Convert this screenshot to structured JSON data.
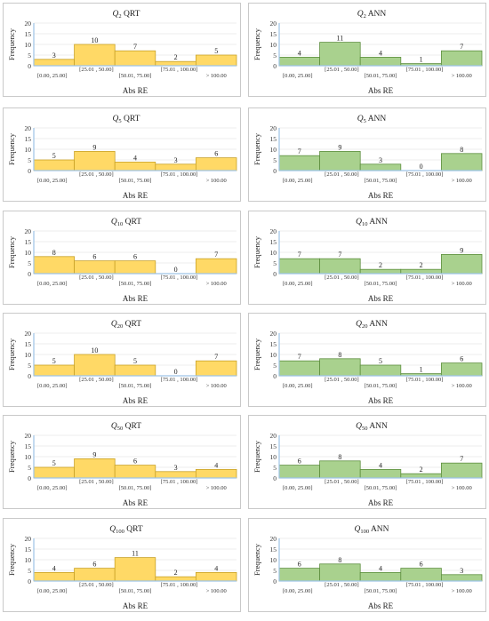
{
  "common": {
    "ylabel": "Frequency",
    "xlabel": "Abs RE",
    "yticks": [
      "0",
      "5",
      "10",
      "15",
      "20"
    ],
    "xticks": [
      "[0.00, 25.00]",
      "[25.01 , 50.00]",
      "[50.01, 75.00]",
      "[75.01 , 100.00]",
      "> 100.00"
    ]
  },
  "colors": {
    "qrt_fill": "#ffd966",
    "qrt_stroke": "#c9a227",
    "ann_fill": "#a9d18e",
    "ann_stroke": "#5e8f3f",
    "axis": "#9dc3e6",
    "gridline": "#d9d9d9",
    "panel_border": "#c9c9c9"
  },
  "chart_data": [
    {
      "type": "bar",
      "title": {
        "q": "Q",
        "sub": "2",
        "method": "QRT"
      },
      "model": "qrt",
      "categories": [
        "[0.00, 25.00]",
        "[25.01 , 50.00]",
        "[50.01, 75.00]",
        "[75.01 , 100.00]",
        "> 100.00"
      ],
      "values": [
        3,
        10,
        7,
        2,
        5
      ],
      "ylim": [
        0,
        20
      ],
      "ylabel": "Frequency",
      "xlabel": "Abs RE",
      "grid": true
    },
    {
      "type": "bar",
      "title": {
        "q": "Q",
        "sub": "2",
        "method": "ANN"
      },
      "model": "ann",
      "categories": [
        "[0.00, 25.00]",
        "[25.01 , 50.00]",
        "[50.01, 75.00]",
        "[75.01 , 100.00]",
        "> 100.00"
      ],
      "values": [
        4,
        11,
        4,
        1,
        7
      ],
      "ylim": [
        0,
        20
      ],
      "ylabel": "Frequency",
      "xlabel": "Abs RE",
      "grid": true
    },
    {
      "type": "bar",
      "title": {
        "q": "Q",
        "sub": "5",
        "method": "QRT"
      },
      "model": "qrt",
      "categories": [
        "[0.00, 25.00]",
        "[25.01 , 50.00]",
        "[50.01, 75.00]",
        "[75.01 , 100.00]",
        "> 100.00"
      ],
      "values": [
        5,
        9,
        4,
        3,
        6
      ],
      "ylim": [
        0,
        20
      ],
      "ylabel": "Frequency",
      "xlabel": "Abs RE",
      "grid": true
    },
    {
      "type": "bar",
      "title": {
        "q": "Q",
        "sub": "5",
        "method": "ANN"
      },
      "model": "ann",
      "categories": [
        "[0.00, 25.00]",
        "[25.01 , 50.00]",
        "[50.01, 75.00]",
        "[75.01 , 100.00]",
        "> 100.00"
      ],
      "values": [
        7,
        9,
        3,
        0,
        8
      ],
      "ylim": [
        0,
        20
      ],
      "ylabel": "Frequency",
      "xlabel": "Abs RE",
      "grid": true
    },
    {
      "type": "bar",
      "title": {
        "q": "Q",
        "sub": "10",
        "method": "QRT"
      },
      "model": "qrt",
      "categories": [
        "[0.00, 25.00]",
        "[25.01 , 50.00]",
        "[50.01, 75.00]",
        "[75.01 , 100.00]",
        "> 100.00"
      ],
      "values": [
        8,
        6,
        6,
        0,
        7
      ],
      "ylim": [
        0,
        20
      ],
      "ylabel": "Frequency",
      "xlabel": "Abs RE",
      "grid": true
    },
    {
      "type": "bar",
      "title": {
        "q": "Q",
        "sub": "10",
        "method": "ANN"
      },
      "model": "ann",
      "categories": [
        "[0.00, 25.00]",
        "[25.01 , 50.00]",
        "[50.01, 75.00]",
        "[75.01 , 100.00]",
        "> 100.00"
      ],
      "values": [
        7,
        7,
        2,
        2,
        9
      ],
      "ylim": [
        0,
        20
      ],
      "ylabel": "Frequency",
      "xlabel": "Abs RE",
      "grid": true
    },
    {
      "type": "bar",
      "title": {
        "q": "Q",
        "sub": "20",
        "method": "QRT"
      },
      "model": "qrt",
      "categories": [
        "[0.00, 25.00]",
        "[25.01 , 50.00]",
        "[50.01, 75.00]",
        "[75.01 , 100.00]",
        "> 100.00"
      ],
      "values": [
        5,
        10,
        5,
        0,
        7
      ],
      "ylim": [
        0,
        20
      ],
      "ylabel": "Frequency",
      "xlabel": "Abs RE",
      "grid": true
    },
    {
      "type": "bar",
      "title": {
        "q": "Q",
        "sub": "20",
        "method": "ANN"
      },
      "model": "ann",
      "categories": [
        "[0.00, 25.00]",
        "[25.01 , 50.00]",
        "[50.01, 75.00]",
        "[75.01 , 100.00]",
        "> 100.00"
      ],
      "values": [
        7,
        8,
        5,
        1,
        6
      ],
      "ylim": [
        0,
        20
      ],
      "ylabel": "Frequency",
      "xlabel": "Abs RE",
      "grid": true
    },
    {
      "type": "bar",
      "title": {
        "q": "Q",
        "sub": "50",
        "method": "QRT"
      },
      "model": "qrt",
      "categories": [
        "[0.00, 25.00]",
        "[25.01 , 50.00]",
        "[50.01, 75.00]",
        "[75.01 , 100.00]",
        "> 100.00"
      ],
      "values": [
        5,
        9,
        6,
        3,
        4
      ],
      "ylim": [
        0,
        20
      ],
      "ylabel": "Frequency",
      "xlabel": "Abs RE",
      "grid": true
    },
    {
      "type": "bar",
      "title": {
        "q": "Q",
        "sub": "50",
        "method": "ANN"
      },
      "model": "ann",
      "categories": [
        "[0.00, 25.00]",
        "[25.01 , 50.00]",
        "[50.01, 75.00]",
        "[75.01 , 100.00]",
        "> 100.00"
      ],
      "values": [
        6,
        8,
        4,
        2,
        7
      ],
      "ylim": [
        0,
        20
      ],
      "ylabel": "Frequency",
      "xlabel": "Abs RE",
      "grid": true
    },
    {
      "type": "bar",
      "title": {
        "q": "Q",
        "sub": "100",
        "method": "QRT"
      },
      "model": "qrt",
      "categories": [
        "[0.00, 25.00]",
        "[25.01 , 50.00]",
        "[50.01, 75.00]",
        "[75.01 , 100.00]",
        "> 100.00"
      ],
      "values": [
        4,
        6,
        11,
        2,
        4
      ],
      "ylim": [
        0,
        20
      ],
      "ylabel": "Frequency",
      "xlabel": "Abs RE",
      "grid": true
    },
    {
      "type": "bar",
      "title": {
        "q": "Q",
        "sub": "100",
        "method": "ANN"
      },
      "model": "ann",
      "categories": [
        "[0.00, 25.00]",
        "[25.01 , 50.00]",
        "[50.01, 75.00]",
        "[75.01 , 100.00]",
        "> 100.00"
      ],
      "values": [
        6,
        8,
        4,
        6,
        3
      ],
      "ylim": [
        0,
        20
      ],
      "ylabel": "Frequency",
      "xlabel": "Abs RE",
      "grid": true
    }
  ]
}
